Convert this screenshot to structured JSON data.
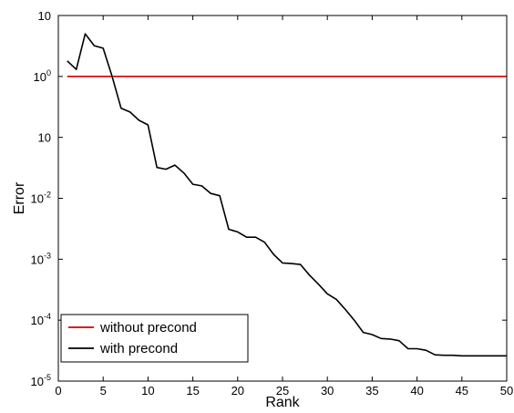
{
  "chart_data": {
    "type": "line",
    "title": "",
    "xlabel": "Rank",
    "ylabel": "Error",
    "xlim": [
      0,
      50
    ],
    "ylim": [
      1e-05,
      10
    ],
    "yscale": "log",
    "grid": false,
    "legend_position": "bottom-left",
    "x_ticks": [
      0,
      5,
      10,
      15,
      20,
      25,
      30,
      35,
      40,
      45,
      50
    ],
    "x_tick_labels": [
      "0",
      "5",
      "10",
      "15",
      "20",
      "25",
      "30",
      "35",
      "40",
      "45",
      "50"
    ],
    "y_ticks": [
      {
        "value": 10,
        "base": "10",
        "exp": ""
      },
      {
        "value": 1,
        "base": "10",
        "exp": "0"
      },
      {
        "value": 0.1,
        "base": "10",
        "exp": ""
      },
      {
        "value": 0.01,
        "base": "10",
        "exp": "-2"
      },
      {
        "value": 0.001,
        "base": "10",
        "exp": "-3"
      },
      {
        "value": 0.0001,
        "base": "10",
        "exp": "-4"
      },
      {
        "value": 1e-05,
        "base": "10",
        "exp": "-5"
      }
    ],
    "series": [
      {
        "name": "without precond",
        "color": "#d40000",
        "x": [
          1,
          50
        ],
        "y": [
          1,
          1
        ]
      },
      {
        "name": "with precond",
        "color": "#000000",
        "x": [
          1,
          2,
          3,
          4,
          5,
          6,
          7,
          8,
          9,
          10,
          11,
          12,
          13,
          14,
          15,
          16,
          17,
          18,
          19,
          20,
          21,
          22,
          23,
          24,
          25,
          26,
          27,
          28,
          29,
          30,
          31,
          32,
          33,
          34,
          35,
          36,
          37,
          38,
          39,
          40,
          41,
          42,
          43,
          44,
          45,
          46,
          47,
          48,
          49,
          50
        ],
        "y": [
          1.8,
          1.3,
          5.0,
          3.2,
          2.9,
          1.0,
          0.3,
          0.26,
          0.19,
          0.16,
          0.032,
          0.03,
          0.035,
          0.026,
          0.017,
          0.016,
          0.012,
          0.011,
          0.0031,
          0.0028,
          0.0023,
          0.0023,
          0.0019,
          0.0012,
          0.00087,
          0.00085,
          0.00082,
          0.00055,
          0.00039,
          0.00027,
          0.00022,
          0.00015,
          0.0001,
          6.3e-05,
          5.8e-05,
          5e-05,
          4.9e-05,
          4.6e-05,
          3.4e-05,
          3.4e-05,
          3.2e-05,
          2.7e-05,
          2.65e-05,
          2.65e-05,
          2.6e-05,
          2.6e-05,
          2.6e-05,
          2.6e-05,
          2.6e-05,
          2.6e-05
        ]
      }
    ]
  }
}
